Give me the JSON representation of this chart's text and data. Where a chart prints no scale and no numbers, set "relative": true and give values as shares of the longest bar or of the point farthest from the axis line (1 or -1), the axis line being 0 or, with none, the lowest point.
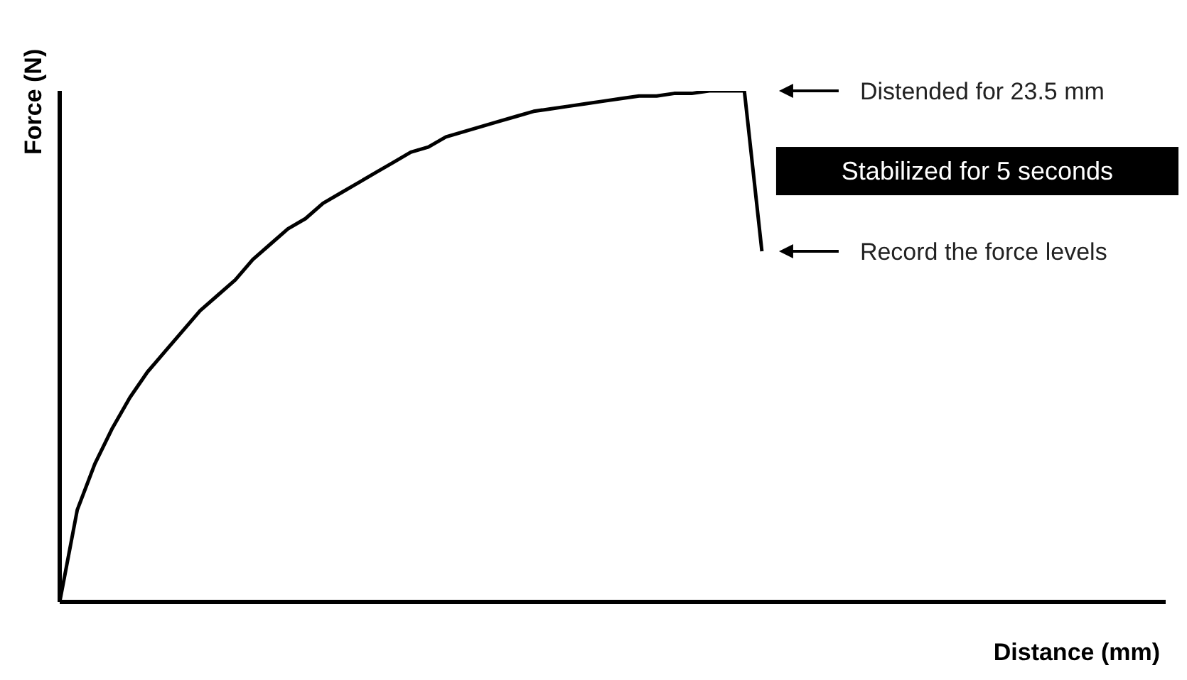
{
  "chart_data": {
    "type": "line",
    "relative": true,
    "xlabel": "Distance (mm)",
    "ylabel": "Force (N)",
    "categories": [
      null,
      null,
      null,
      null,
      null,
      null,
      null,
      null,
      null,
      null,
      null,
      null,
      null,
      null,
      null,
      null,
      null,
      null,
      null,
      null,
      null,
      null,
      null,
      null,
      null,
      null,
      null,
      null,
      null,
      null,
      null,
      null,
      null,
      null,
      null,
      null,
      null,
      null,
      null,
      null,
      null,
      null,
      null,
      null,
      null,
      null,
      null,
      null,
      null,
      null,
      null,
      null,
      null,
      null,
      null,
      null,
      null,
      null,
      null,
      null,
      null,
      null,
      null,
      null
    ],
    "series": [
      {
        "color": "#000000",
        "values": [
          0,
          0.18,
          0.27,
          0.34,
          0.4,
          0.45,
          0.49,
          0.53,
          0.57,
          0.6,
          0.63,
          0.67,
          0.7,
          0.73,
          0.75,
          0.78,
          0.8,
          0.82,
          0.84,
          0.86,
          0.88,
          0.89,
          0.91,
          0.92,
          0.93,
          0.94,
          0.95,
          0.96,
          0.965,
          0.97,
          0.975,
          0.98,
          0.985,
          0.99,
          0.99,
          0.995,
          0.995,
          1,
          1,
          1,
          0.686,
          null,
          null,
          null,
          null,
          null,
          null,
          null,
          null,
          null,
          null,
          null,
          null,
          null,
          null,
          null,
          null,
          null,
          null,
          null,
          null,
          null,
          null,
          null
        ]
      }
    ],
    "marker": "none",
    "grid": false,
    "legend": false,
    "annotations": [
      "Distended for 23.5 mm",
      "Stabilized for 5 seconds",
      "Record the force levels"
    ]
  }
}
